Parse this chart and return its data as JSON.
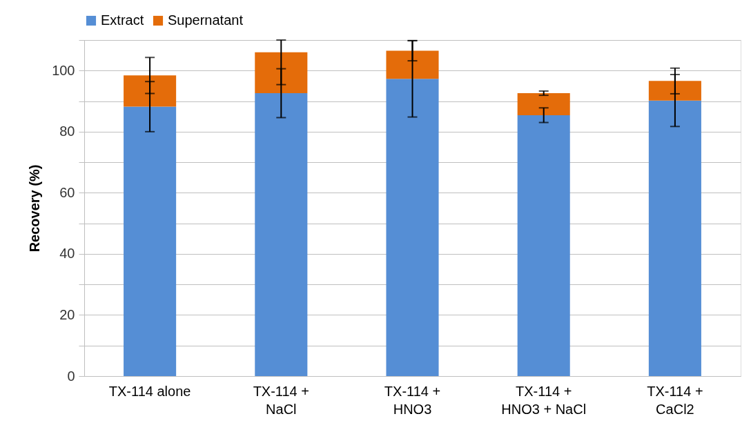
{
  "chart_data": {
    "type": "bar",
    "stacked": true,
    "ylabel": "Recovery (%)",
    "categories": [
      "TX-114 alone",
      "TX-114 + NaCl",
      "TX-114 + HNO3",
      "TX-114 + HNO3 + NaCl",
      "TX-114 + CaCl2"
    ],
    "series": [
      {
        "name": "Extract",
        "color": "#558ed5",
        "values": [
          88.2,
          92.6,
          97.3,
          85.4,
          90.2
        ],
        "errors": [
          8.2,
          8.0,
          12.5,
          2.4,
          8.5
        ]
      },
      {
        "name": "Supernatant",
        "color": "#e46c0a",
        "values": [
          10.2,
          13.4,
          9.2,
          7.2,
          6.4
        ],
        "errors": [
          5.9,
          [
            95.4,
            110
          ],
          3.3,
          0.7,
          4.2
        ]
      }
    ],
    "ylim": [
      0,
      110
    ],
    "yticks": [
      0,
      {
        "value": 10,
        "label": null
      },
      20,
      {
        "value": 30,
        "label": null
      },
      40,
      {
        "value": 50,
        "label": null
      },
      60,
      {
        "value": 70,
        "label": null
      },
      80,
      {
        "value": 90,
        "label": null
      },
      100,
      {
        "value": 110,
        "label": null
      }
    ],
    "grid": "y",
    "legend": "top"
  }
}
